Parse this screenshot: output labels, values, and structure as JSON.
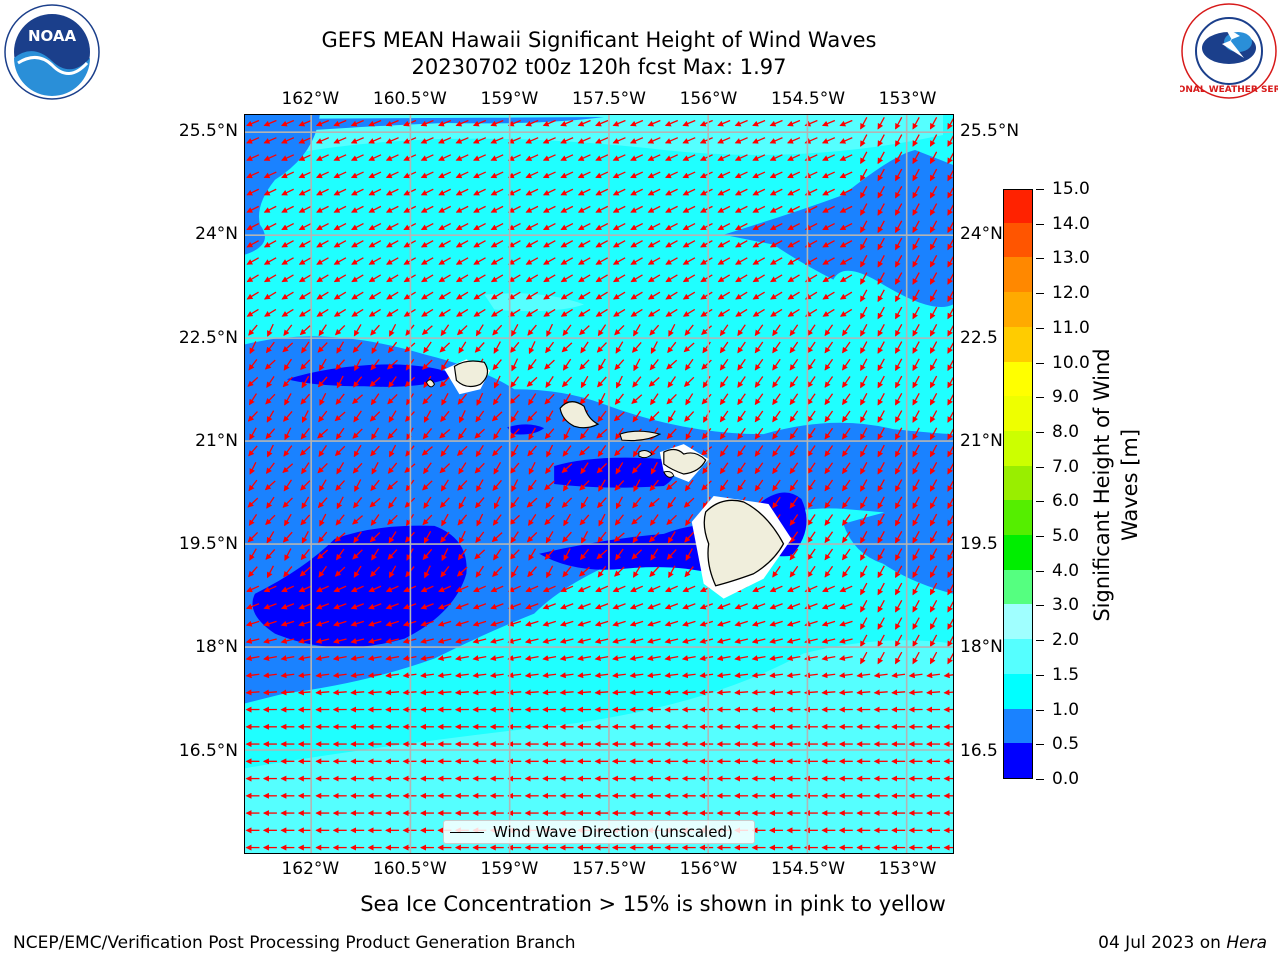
{
  "title": {
    "line1": "GEFS MEAN Hawaii Significant Height of Wind Waves",
    "line2": "20230702 t00z 120h fcst   Max: 1.97"
  },
  "map": {
    "lon_ticks": [
      "162°W",
      "160.5°W",
      "159°W",
      "157.5°W",
      "156°W",
      "154.5°W",
      "153°W"
    ],
    "lon_values": [
      -162,
      -160.5,
      -159,
      -157.5,
      -156,
      -154.5,
      -153
    ],
    "lat_ticks": [
      "25.5°N",
      "24°N",
      "22.5°N",
      "21°N",
      "19.5°N",
      "18°N",
      "16.5°N"
    ],
    "lat_values": [
      25.5,
      24,
      22.5,
      21,
      19.5,
      18,
      16.5
    ],
    "lon_range": [
      -163,
      -152.3
    ],
    "lat_range": [
      15.0,
      25.75
    ],
    "right_lat_ticks": [
      "25.5°N",
      "24°N",
      "22.5",
      "21°N",
      "19.5",
      "18°N",
      "16.5"
    ],
    "grid": true,
    "arrow_color": "#ff0000",
    "land_color": "#f0eedc",
    "field_colors": {
      "0.0-0.5": "#0000ff",
      "0.5-1.0": "#1a82ff",
      "1.0-1.5": "#1fffff",
      "1.5-2.0": "#55ffff"
    },
    "legend_label": "Wind Wave Direction (unscaled)"
  },
  "colorbar": {
    "title_line1": "Significant Height of Wind",
    "title_line2": "Waves [m]",
    "labels": [
      "0.0",
      "0.5",
      "1.0",
      "1.5",
      "2.0",
      "3.0",
      "4.0",
      "5.0",
      "6.0",
      "7.0",
      "8.0",
      "9.0",
      "10.0",
      "11.0",
      "12.0",
      "13.0",
      "14.0",
      "15.0"
    ],
    "colors": [
      "#0000ff",
      "#1a82ff",
      "#00ffff",
      "#55ffff",
      "#a0ffff",
      "#55ff80",
      "#00ee00",
      "#55ee00",
      "#99ee00",
      "#ccff00",
      "#eeff00",
      "#ffff00",
      "#ffcc00",
      "#ffaa00",
      "#ff8800",
      "#ff5500",
      "#ff2200",
      "#ff0000"
    ]
  },
  "subtitle": "Sea Ice Concentration > 15% is shown in pink to yellow",
  "footer": {
    "left": "NCEP/EMC/Verification Post Processing Product Generation Branch",
    "right_date": "04 Jul 2023 on ",
    "right_host": "Hera"
  },
  "logos": {
    "noaa_text": "NOAA",
    "nws_text": "NATIONAL WEATHER SERVICE"
  }
}
